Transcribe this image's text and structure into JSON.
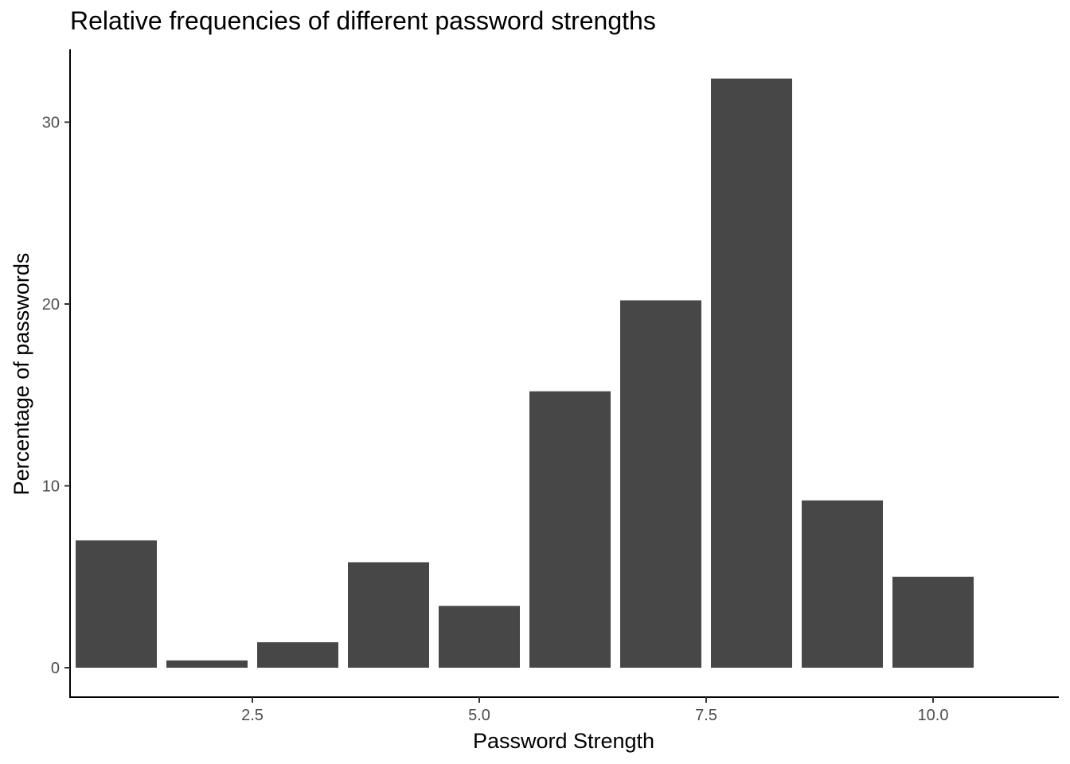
{
  "chart_data": {
    "type": "bar",
    "title": "Relative frequencies of different password strengths",
    "xlabel": "Password Strength",
    "ylabel": "Percentage of passwords",
    "x": [
      1,
      2,
      3,
      4,
      5,
      6,
      7,
      8,
      9,
      10
    ],
    "values": [
      7.0,
      0.4,
      1.4,
      5.8,
      3.4,
      15.2,
      20.2,
      32.4,
      9.2,
      5.0
    ],
    "xlim": [
      0.5,
      10.5
    ],
    "ylim": [
      0,
      32.4
    ],
    "x_ticks": [
      2.5,
      5.0,
      7.5,
      10.0
    ],
    "x_tick_labels": [
      "2.5",
      "5.0",
      "7.5",
      "10.0"
    ],
    "y_ticks": [
      0,
      10,
      20,
      30
    ],
    "y_tick_labels": [
      "0",
      "10",
      "20",
      "30"
    ],
    "bar_color": "#474747",
    "grid": false,
    "legend": "none"
  }
}
